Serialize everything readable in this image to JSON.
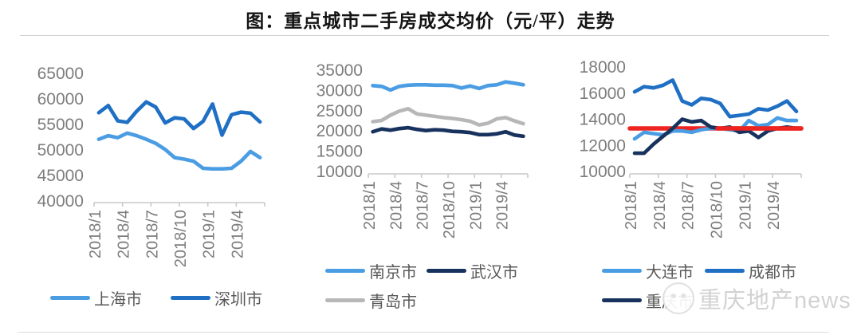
{
  "figure": {
    "title": "图：重点城市二手房成交均价（元/平）走势"
  },
  "watermark": {
    "icon": "round-mascot-logo",
    "text": "重庆地产news"
  },
  "colors": {
    "light_blue": "#4b9de3",
    "medium_blue": "#1f6fc4",
    "navy": "#18325e",
    "gray_line": "#b7b7b7",
    "red": "#ee2420",
    "axis_line": "#c9c9c9",
    "axis_text": "#7d7d7d",
    "legend_text": "#595959"
  },
  "chart_data": [
    {
      "type": "line",
      "title": "",
      "x": [
        "2018/1",
        "2018/2",
        "2018/3",
        "2018/4",
        "2018/5",
        "2018/6",
        "2018/7",
        "2018/8",
        "2018/9",
        "2018/10",
        "2018/11",
        "2018/12",
        "2019/1",
        "2019/2",
        "2019/3",
        "2019/4",
        "2019/5",
        "2019/6"
      ],
      "x_tick_labels": [
        "2018/1",
        "2018/4",
        "2018/7",
        "2018/10",
        "2019/1",
        "2019/4"
      ],
      "ylim": [
        40000,
        65000
      ],
      "yticks": [
        40000,
        45000,
        50000,
        55000,
        60000,
        65000
      ],
      "grid": false,
      "legend_position": "bottom",
      "series": [
        {
          "name": "上海市",
          "color_key": "light_blue",
          "values": [
            52100,
            52800,
            52400,
            53300,
            52800,
            52100,
            51300,
            50100,
            48500,
            48200,
            47800,
            46400,
            46300,
            46300,
            46400,
            47800,
            49700,
            48500
          ]
        },
        {
          "name": "深圳市",
          "color_key": "medium_blue",
          "values": [
            57300,
            58700,
            55700,
            55400,
            57600,
            59400,
            58400,
            55300,
            56300,
            56100,
            54200,
            55600,
            59000,
            52900,
            56900,
            57400,
            57200,
            55500
          ]
        }
      ]
    },
    {
      "type": "line",
      "title": "",
      "x": [
        "2018/1",
        "2018/2",
        "2018/3",
        "2018/4",
        "2018/5",
        "2018/6",
        "2018/7",
        "2018/8",
        "2018/9",
        "2018/10",
        "2018/11",
        "2018/12",
        "2019/1",
        "2019/2",
        "2019/3",
        "2019/4",
        "2019/5",
        "2019/6"
      ],
      "x_tick_labels": [
        "2018/1",
        "2018/4",
        "2018/7",
        "2018/10",
        "2019/1",
        "2019/4"
      ],
      "ylim": [
        10000,
        35000
      ],
      "yticks": [
        10000,
        15000,
        20000,
        25000,
        30000,
        35000
      ],
      "grid": false,
      "legend_position": "bottom",
      "series": [
        {
          "name": "南京市",
          "color_key": "light_blue",
          "values": [
            31200,
            31000,
            30100,
            31000,
            31300,
            31400,
            31400,
            31300,
            31300,
            31200,
            30600,
            31100,
            30500,
            31200,
            31400,
            32100,
            31800,
            31400
          ]
        },
        {
          "name": "武汉市",
          "color_key": "navy",
          "values": [
            19800,
            20500,
            20200,
            20600,
            20800,
            20400,
            20100,
            20300,
            20200,
            19900,
            19800,
            19600,
            19100,
            19100,
            19300,
            19800,
            19000,
            18700
          ]
        },
        {
          "name": "青岛市",
          "color_key": "gray_line",
          "values": [
            22300,
            22600,
            23900,
            24900,
            25500,
            24200,
            23900,
            23600,
            23300,
            23100,
            22800,
            22400,
            21500,
            21900,
            23000,
            23300,
            22500,
            21800
          ]
        }
      ]
    },
    {
      "type": "line",
      "title": "",
      "x": [
        "2018/1",
        "2018/2",
        "2018/3",
        "2018/4",
        "2018/5",
        "2018/6",
        "2018/7",
        "2018/8",
        "2018/9",
        "2018/10",
        "2018/11",
        "2018/12",
        "2019/1",
        "2019/2",
        "2019/3",
        "2019/4",
        "2019/5",
        "2019/6"
      ],
      "x_tick_labels": [
        "2018/1",
        "2018/4",
        "2018/7",
        "2018/10",
        "2019/1",
        "2019/4"
      ],
      "ylim": [
        10000,
        18000
      ],
      "yticks": [
        10000,
        12000,
        14000,
        16000,
        18000
      ],
      "grid": false,
      "legend_position": "bottom",
      "ref_line": {
        "value": 13300,
        "color_key": "red"
      },
      "series": [
        {
          "name": "大连市",
          "color_key": "light_blue",
          "values": [
            12500,
            13000,
            12900,
            12800,
            13100,
            13100,
            13000,
            13200,
            13300,
            13300,
            13200,
            13100,
            13900,
            13500,
            13600,
            14100,
            13900,
            13900
          ]
        },
        {
          "name": "成都市",
          "color_key": "medium_blue",
          "values": [
            16100,
            16500,
            16400,
            16600,
            17000,
            15400,
            15100,
            15600,
            15500,
            15200,
            14200,
            14300,
            14400,
            14800,
            14700,
            15000,
            15400,
            14600
          ]
        },
        {
          "name": "重庆市",
          "color_key": "navy",
          "values": [
            11400,
            11400,
            12100,
            12700,
            13300,
            14000,
            13800,
            13900,
            13400,
            13300,
            13400,
            13000,
            13100,
            12600,
            13100,
            13300,
            13400,
            13300
          ]
        }
      ]
    }
  ]
}
